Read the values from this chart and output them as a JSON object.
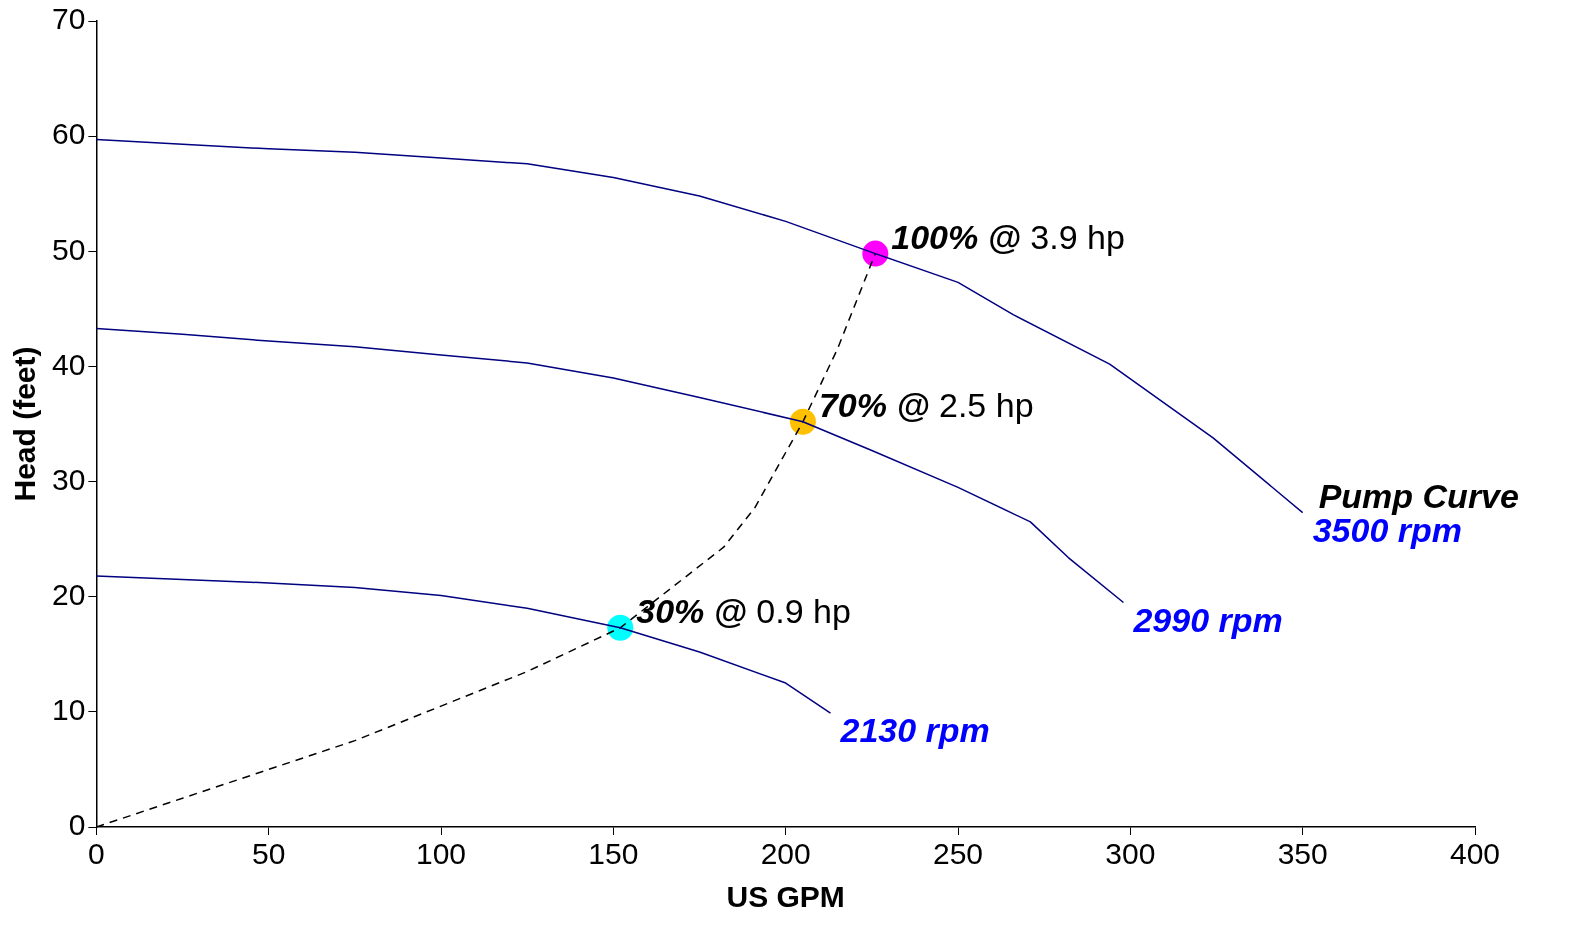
{
  "chart_data": {
    "type": "line",
    "xlabel": "US GPM",
    "ylabel": "Head (feet)",
    "xlim": [
      0,
      400
    ],
    "xticks": [
      0,
      50,
      100,
      150,
      200,
      250,
      300,
      350,
      400
    ],
    "ylim": [
      0,
      70
    ],
    "yticks": [
      0,
      10,
      20,
      30,
      40,
      50,
      60,
      70
    ],
    "grid": false,
    "legend": false,
    "marker": "none",
    "series": [
      {
        "name": "3500 rpm",
        "color": "#000080",
        "line_style": "solid",
        "x": [
          0,
          25,
          50,
          75,
          100,
          125,
          150,
          175,
          200,
          226,
          250,
          266,
          294,
          324,
          350
        ],
        "values": [
          59.7,
          59.3,
          58.9,
          58.6,
          58.1,
          57.6,
          56.4,
          54.8,
          52.6,
          49.8,
          47.3,
          44.5,
          40.2,
          33.8,
          27.3
        ]
      },
      {
        "name": "2990 rpm",
        "color": "#000080",
        "line_style": "solid",
        "x": [
          0,
          25,
          50,
          75,
          100,
          125,
          150,
          175,
          205,
          225,
          250,
          271,
          282,
          298
        ],
        "values": [
          43.3,
          42.8,
          42.2,
          41.7,
          41.0,
          40.3,
          39.0,
          37.3,
          35.2,
          32.7,
          29.5,
          26.5,
          23.4,
          19.5
        ]
      },
      {
        "name": "2130 rpm",
        "color": "#000080",
        "line_style": "solid",
        "x": [
          0,
          25,
          50,
          75,
          100,
          125,
          152,
          175,
          200,
          213
        ],
        "values": [
          21.8,
          21.5,
          21.2,
          20.8,
          20.1,
          19.0,
          17.3,
          15.2,
          12.5,
          9.9
        ]
      },
      {
        "color": "#000000",
        "line_style": "dashed",
        "x": [
          0,
          25,
          50,
          75,
          100,
          125,
          152,
          182,
          191,
          205,
          215,
          226
        ],
        "values": [
          0,
          2.5,
          5,
          7.5,
          10.5,
          13.5,
          17.3,
          24.3,
          27.7,
          35.2,
          41.5,
          49.8
        ]
      },
      {
        "type": "scatter",
        "marker": "circle",
        "x": [
          226,
          205,
          152
        ],
        "values": [
          49.8,
          35.2,
          17.3
        ],
        "colors": [
          "#ff00ff",
          "#ffc000",
          "#00ffff"
        ]
      }
    ],
    "annotations": [
      {
        "text": "100% @ 3.9 hp",
        "x": 226,
        "y": 49.8
      },
      {
        "text": "70% @ 2.5 hp",
        "x": 205,
        "y": 35.2
      },
      {
        "text": "30% @ 0.9 hp",
        "x": 152,
        "y": 17.3
      },
      {
        "text": "Pump Curve",
        "x": 350,
        "y": 27.3
      }
    ]
  }
}
